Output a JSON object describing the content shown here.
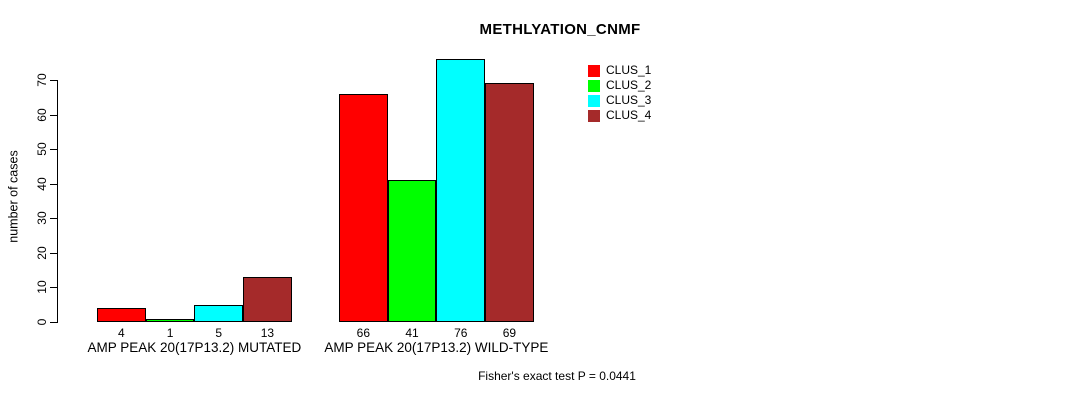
{
  "chart_data": {
    "type": "bar",
    "title": "METHLYATION_CNMF",
    "ylabel": "number of cases",
    "xlabel": "",
    "ylim": [
      0,
      70
    ],
    "y_ticks": [
      0,
      10,
      20,
      30,
      40,
      50,
      60,
      70
    ],
    "grid": false,
    "legend_position": "top-right",
    "categories": [
      "AMP PEAK 20(17P13.2) MUTATED",
      "AMP PEAK 20(17P13.2) WILD-TYPE"
    ],
    "series": [
      {
        "name": "CLUS_1",
        "color": "#ff0000",
        "values": [
          4,
          66
        ]
      },
      {
        "name": "CLUS_2",
        "color": "#00ff00",
        "values": [
          1,
          41
        ]
      },
      {
        "name": "CLUS_3",
        "color": "#00ffff",
        "values": [
          5,
          76
        ]
      },
      {
        "name": "CLUS_4",
        "color": "#a52a2a",
        "values": [
          13,
          69
        ]
      }
    ],
    "bar_value_labels": [
      [
        4,
        1,
        5,
        13
      ],
      [
        66,
        41,
        76,
        69
      ]
    ],
    "annotation": "Fisher's exact test P = 0.0441"
  }
}
